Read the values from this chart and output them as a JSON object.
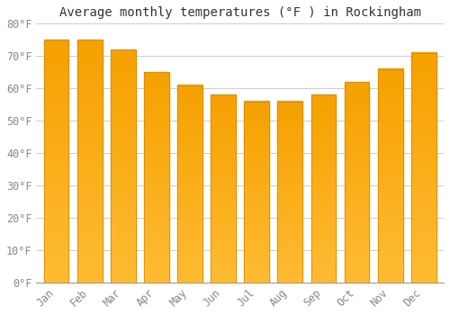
{
  "title": "Average monthly temperatures (°F ) in Rockingham",
  "months": [
    "Jan",
    "Feb",
    "Mar",
    "Apr",
    "May",
    "Jun",
    "Jul",
    "Aug",
    "Sep",
    "Oct",
    "Nov",
    "Dec"
  ],
  "values": [
    75,
    75,
    72,
    65,
    61,
    58,
    56,
    56,
    58,
    62,
    66,
    71
  ],
  "bar_color_top": "#FFBB33",
  "bar_color_bottom": "#F5A000",
  "bar_edge_color": "#CC8800",
  "background_color": "#FFFFFF",
  "grid_color": "#CCCCCC",
  "ylim": [
    0,
    80
  ],
  "ytick_step": 10,
  "title_fontsize": 10,
  "tick_fontsize": 8.5,
  "font_family": "monospace",
  "tick_color": "#888888",
  "title_color": "#333333",
  "bar_width": 0.75
}
